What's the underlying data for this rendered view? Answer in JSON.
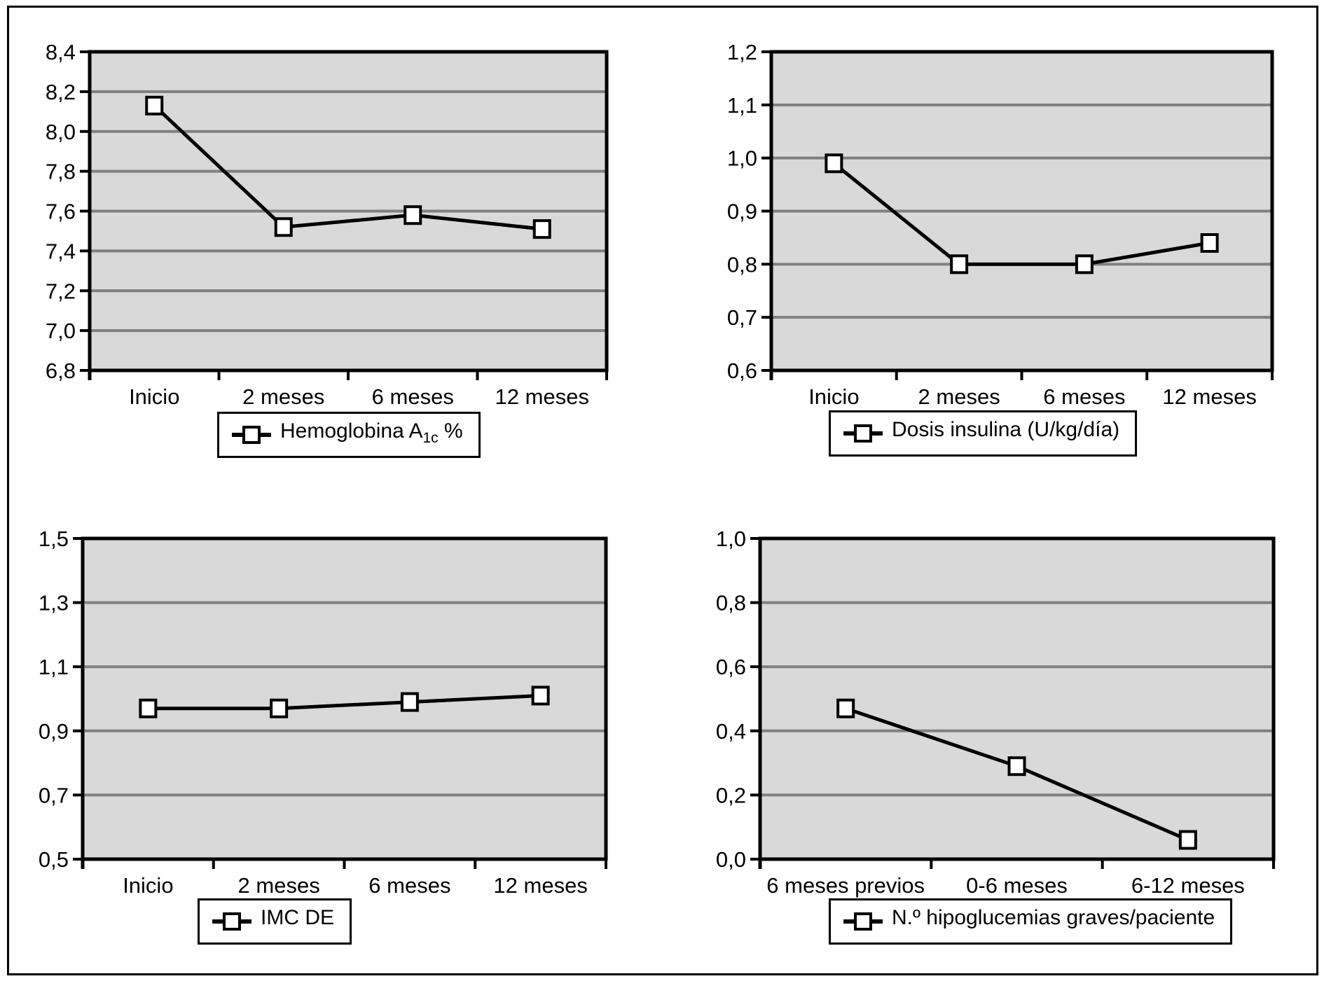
{
  "figure": {
    "background": "#ffffff",
    "frame_border_color": "#000000"
  },
  "colors": {
    "plot_bg": "#d9d9d9",
    "gridline": "#808080",
    "axis": "#000000",
    "line": "#000000",
    "marker_fill": "#ffffff",
    "text": "#000000"
  },
  "chart_data": [
    {
      "type": "line",
      "title": "",
      "xlabel": "",
      "ylabel": "",
      "categories": [
        "Inicio",
        "2 meses",
        "6 meses",
        "12 meses"
      ],
      "series": [
        {
          "name": "Hemoglobina A1c %",
          "values": [
            8.13,
            7.52,
            7.58,
            7.51
          ]
        }
      ],
      "ylim": [
        6.8,
        8.4
      ],
      "ytick_step": 0.2,
      "ytick_labels": [
        "6,8",
        "7,0",
        "7,2",
        "7,4",
        "7,6",
        "7,8",
        "8,0",
        "8,2",
        "8,4"
      ],
      "decimals": 1,
      "decimal_separator": ",",
      "grid": true,
      "legend_position": "bottom",
      "legend": {
        "main": "Hemoglobina A",
        "sub": "1c",
        "suffix": " %"
      }
    },
    {
      "type": "line",
      "title": "",
      "xlabel": "",
      "ylabel": "",
      "categories": [
        "Inicio",
        "2 meses",
        "6 meses",
        "12 meses"
      ],
      "series": [
        {
          "name": "Dosis insulina (U/kg/día)",
          "values": [
            0.99,
            0.8,
            0.8,
            0.84
          ]
        }
      ],
      "ylim": [
        0.6,
        1.2
      ],
      "ytick_step": 0.1,
      "ytick_labels": [
        "0,6",
        "0,7",
        "0,8",
        "0,9",
        "1,0",
        "1,1",
        "1,2"
      ],
      "decimals": 1,
      "decimal_separator": ",",
      "grid": true,
      "legend_position": "bottom",
      "legend": {
        "main": "Dosis insulina (U/kg/día)",
        "sub": "",
        "suffix": ""
      }
    },
    {
      "type": "line",
      "title": "",
      "xlabel": "",
      "ylabel": "",
      "categories": [
        "Inicio",
        "2 meses",
        "6 meses",
        "12 meses"
      ],
      "series": [
        {
          "name": "IMC DE",
          "values": [
            0.97,
            0.97,
            0.99,
            1.01
          ]
        }
      ],
      "ylim": [
        0.5,
        1.5
      ],
      "ytick_step": 0.2,
      "ytick_labels": [
        "0,5",
        "0,7",
        "0,9",
        "1,1",
        "1,3",
        "1,5"
      ],
      "decimals": 1,
      "decimal_separator": ",",
      "grid": true,
      "legend_position": "bottom",
      "legend": {
        "main": "IMC DE",
        "sub": "",
        "suffix": ""
      }
    },
    {
      "type": "line",
      "title": "",
      "xlabel": "",
      "ylabel": "",
      "categories": [
        "6 meses previos",
        "0-6 meses",
        "6-12 meses"
      ],
      "series": [
        {
          "name": "N.º hipoglucemias graves/paciente",
          "values": [
            0.47,
            0.29,
            0.06
          ]
        }
      ],
      "ylim": [
        0.0,
        1.0
      ],
      "ytick_step": 0.2,
      "ytick_labels": [
        "0,0",
        "0,2",
        "0,4",
        "0,6",
        "0,8",
        "1,0"
      ],
      "decimals": 1,
      "decimal_separator": ",",
      "grid": true,
      "legend_position": "bottom",
      "legend": {
        "main": "N.º hipoglucemias graves/paciente",
        "sub": "",
        "suffix": ""
      }
    }
  ]
}
